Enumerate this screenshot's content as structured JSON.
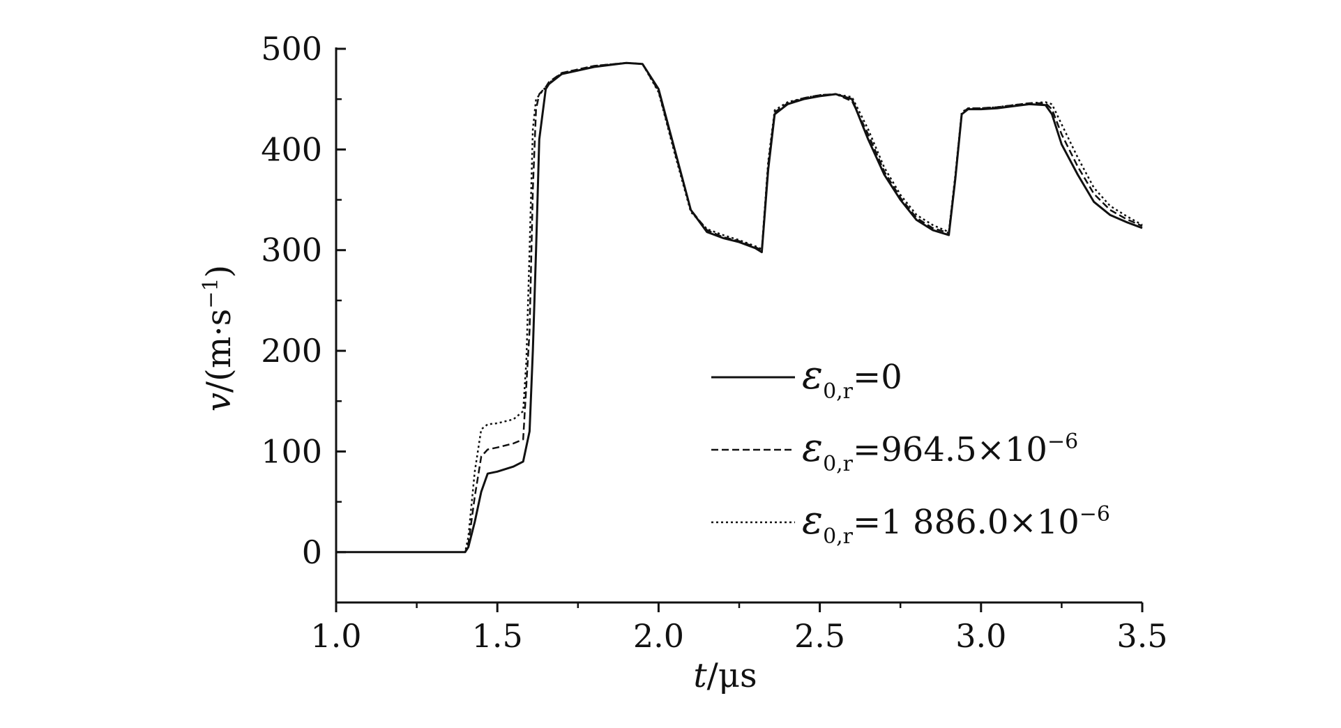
{
  "chart_data": {
    "type": "line",
    "title": "",
    "xlabel_var": "t",
    "xlabel_unit": "/μs",
    "ylabel_var": "v",
    "ylabel_unit": "/(m·s",
    "ylabel_exp": "−1",
    "ylabel_close": ")",
    "xlim": [
      1.0,
      3.5
    ],
    "ylim": [
      -50,
      500
    ],
    "x_ticks": [
      1.0,
      1.5,
      2.0,
      2.5,
      3.0,
      3.5
    ],
    "x_tick_labels": [
      "1.0",
      "1.5",
      "2.0",
      "2.5",
      "3.0",
      "3.5"
    ],
    "y_ticks": [
      0,
      100,
      200,
      300,
      400,
      500
    ],
    "y_tick_labels": [
      "0",
      "100",
      "200",
      "300",
      "400",
      "500"
    ],
    "grid": false,
    "legend_position": "center-right",
    "series": [
      {
        "name": "ε0,r=0",
        "legend": {
          "eps": "ε",
          "sub": "0,r",
          "rest": "=0",
          "exp": ""
        },
        "style": "solid",
        "x": [
          1.0,
          1.4,
          1.41,
          1.43,
          1.45,
          1.47,
          1.5,
          1.55,
          1.58,
          1.6,
          1.61,
          1.62,
          1.63,
          1.65,
          1.66,
          1.7,
          1.8,
          1.9,
          1.95,
          2.0,
          2.05,
          2.1,
          2.15,
          2.2,
          2.25,
          2.3,
          2.32,
          2.34,
          2.36,
          2.4,
          2.45,
          2.5,
          2.55,
          2.6,
          2.65,
          2.7,
          2.75,
          2.8,
          2.85,
          2.9,
          2.92,
          2.94,
          2.96,
          3.0,
          3.05,
          3.1,
          3.15,
          3.2,
          3.22,
          3.25,
          3.3,
          3.35,
          3.4,
          3.45,
          3.5
        ],
        "y": [
          0,
          0,
          5,
          30,
          60,
          78,
          80,
          85,
          90,
          120,
          200,
          300,
          410,
          460,
          465,
          475,
          482,
          486,
          485,
          460,
          400,
          340,
          318,
          312,
          308,
          302,
          298,
          380,
          435,
          445,
          450,
          453,
          455,
          450,
          410,
          375,
          350,
          330,
          320,
          315,
          370,
          435,
          440,
          440,
          441,
          443,
          445,
          444,
          435,
          405,
          375,
          348,
          335,
          328,
          322
        ]
      },
      {
        "name": "ε0,r=964.5×10−6",
        "legend": {
          "eps": "ε",
          "sub": "0,r",
          "rest": "=964.5×10",
          "exp": "−6"
        },
        "style": "dashed",
        "x": [
          1.0,
          1.4,
          1.41,
          1.43,
          1.45,
          1.47,
          1.5,
          1.55,
          1.58,
          1.6,
          1.61,
          1.62,
          1.63,
          1.65,
          1.66,
          1.7,
          1.8,
          1.9,
          1.95,
          2.0,
          2.05,
          2.1,
          2.15,
          2.2,
          2.25,
          2.3,
          2.32,
          2.34,
          2.36,
          2.4,
          2.45,
          2.5,
          2.55,
          2.6,
          2.65,
          2.7,
          2.75,
          2.8,
          2.85,
          2.9,
          2.92,
          2.94,
          2.96,
          3.0,
          3.05,
          3.1,
          3.15,
          3.2,
          3.22,
          3.25,
          3.3,
          3.35,
          3.4,
          3.45,
          3.5
        ],
        "y": [
          0,
          0,
          8,
          55,
          95,
          102,
          104,
          108,
          112,
          220,
          360,
          440,
          455,
          462,
          467,
          476,
          483,
          486,
          485,
          458,
          398,
          340,
          320,
          313,
          309,
          303,
          300,
          385,
          437,
          446,
          451,
          454,
          455,
          448,
          415,
          378,
          352,
          332,
          322,
          317,
          372,
          436,
          441,
          441,
          442,
          444,
          446,
          446,
          440,
          415,
          383,
          356,
          340,
          331,
          324
        ]
      },
      {
        "name": "ε0,r=1 886.0×10−6",
        "legend": {
          "eps": "ε",
          "sub": "0,r",
          "rest": "=1 886.0×10",
          "exp": "−6"
        },
        "style": "dotted",
        "x": [
          1.0,
          1.4,
          1.41,
          1.43,
          1.45,
          1.47,
          1.5,
          1.55,
          1.58,
          1.59,
          1.6,
          1.61,
          1.62,
          1.64,
          1.66,
          1.7,
          1.8,
          1.9,
          1.95,
          2.0,
          2.05,
          2.1,
          2.15,
          2.2,
          2.25,
          2.3,
          2.32,
          2.34,
          2.36,
          2.4,
          2.45,
          2.5,
          2.55,
          2.6,
          2.65,
          2.7,
          2.75,
          2.8,
          2.85,
          2.9,
          2.92,
          2.94,
          2.96,
          3.0,
          3.05,
          3.1,
          3.15,
          3.2,
          3.22,
          3.25,
          3.3,
          3.35,
          3.4,
          3.45,
          3.5
        ],
        "y": [
          0,
          0,
          15,
          80,
          122,
          127,
          128,
          132,
          140,
          190,
          300,
          420,
          450,
          458,
          466,
          476,
          483,
          486,
          485,
          457,
          396,
          338,
          321,
          315,
          310,
          304,
          301,
          388,
          439,
          447,
          451,
          454,
          455,
          452,
          420,
          382,
          355,
          335,
          325,
          318,
          374,
          437,
          441,
          441,
          442,
          444,
          446,
          447,
          445,
          425,
          392,
          362,
          344,
          334,
          325
        ]
      }
    ]
  }
}
